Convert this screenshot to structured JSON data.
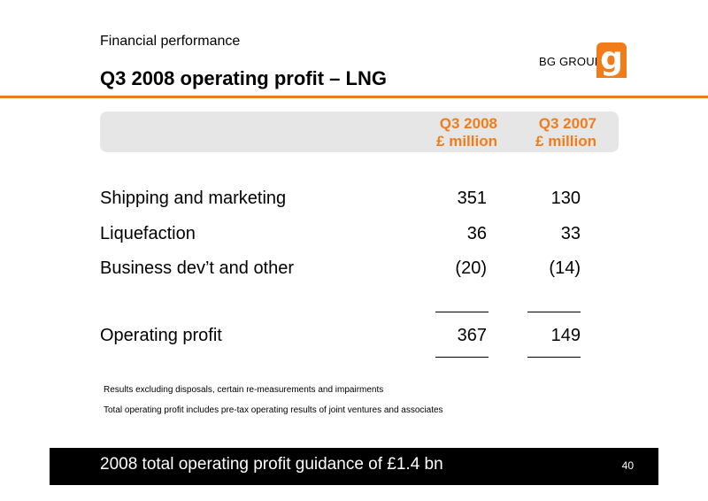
{
  "header": {
    "section": "Financial performance",
    "title": "Q3 2008 operating profit – LNG",
    "brand_text": "BG GROUP",
    "logo_glyph": "g",
    "accent_color": "#f07d1a"
  },
  "table": {
    "columns": [
      {
        "period": "Q3 2008",
        "unit": "£ million"
      },
      {
        "period": "Q3 2007",
        "unit": "£ million"
      }
    ],
    "rows": [
      {
        "label": "Shipping and marketing",
        "q3_2008": "351",
        "q3_2007": "130"
      },
      {
        "label": "Liquefaction",
        "q3_2008": "36",
        "q3_2007": "33"
      },
      {
        "label": "Business dev’t and other",
        "q3_2008": "(20)",
        "q3_2007": "(14)"
      }
    ],
    "total": {
      "label": "Operating profit",
      "q3_2008": "367",
      "q3_2007": "149"
    }
  },
  "notes": [
    "Results excluding disposals, certain re-measurements and impairments",
    "Total operating profit includes pre-tax operating results of joint ventures and associates"
  ],
  "footer": {
    "text": "2008 total operating profit guidance of £1.4 bn",
    "page_number": "40"
  }
}
